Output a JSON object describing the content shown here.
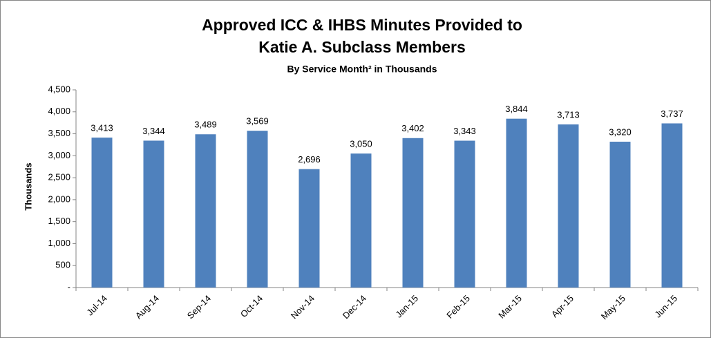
{
  "chart_data": {
    "type": "bar",
    "title": [
      "Approved ICC & IHBS Minutes Provided to",
      "Katie A. Subclass Members"
    ],
    "subtitle": "By Service Month² in Thousands",
    "y_label": "Thousands",
    "categories": [
      "Jul-14",
      "Aug-14",
      "Sep-14",
      "Oct-14",
      "Nov-14",
      "Dec-14",
      "Jan-15",
      "Feb-15",
      "Mar-15",
      "Apr-15",
      "May-15",
      "Jun-15"
    ],
    "values": [
      3413,
      3344,
      3489,
      3569,
      2696,
      3050,
      3402,
      3343,
      3844,
      3713,
      3320,
      3737
    ],
    "value_labels": [
      "3,413",
      "3,344",
      "3,489",
      "3,569",
      "2,696",
      "3,050",
      "3,402",
      "3,343",
      "3,844",
      "3,713",
      "3,320",
      "3,737"
    ],
    "color": "#4f81bd",
    "ylim": [
      0,
      4500
    ],
    "yticks": [
      {
        "value": 0,
        "label": "-"
      },
      500,
      {
        "value": 1000,
        "label": "1,000"
      },
      {
        "value": 1500,
        "label": "1,500"
      },
      {
        "value": 2000,
        "label": "2,000"
      },
      {
        "value": 2500,
        "label": "2,500"
      },
      {
        "value": 3000,
        "label": "3,000"
      },
      {
        "value": 3500,
        "label": "3,500"
      },
      {
        "value": 4000,
        "label": "4,000"
      },
      {
        "value": 4500,
        "label": "4,500"
      }
    ],
    "grid": false
  }
}
